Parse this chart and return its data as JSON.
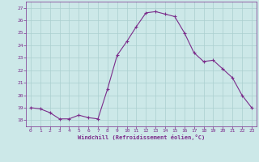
{
  "x": [
    0,
    1,
    2,
    3,
    4,
    5,
    6,
    7,
    8,
    9,
    10,
    11,
    12,
    13,
    14,
    15,
    16,
    17,
    18,
    19,
    20,
    21,
    22,
    23
  ],
  "y": [
    19.0,
    18.9,
    18.6,
    18.1,
    18.1,
    18.4,
    18.2,
    18.1,
    20.5,
    23.2,
    24.3,
    25.5,
    26.6,
    26.7,
    26.5,
    26.3,
    25.0,
    23.4,
    22.7,
    22.8,
    22.1,
    21.4,
    20.0,
    19.0
  ],
  "line_color": "#7b2d8b",
  "marker": "+",
  "marker_size": 3.0,
  "bg_color": "#cce8e8",
  "grid_color": "#aacfcf",
  "xlabel": "Windchill (Refroidissement éolien,°C)",
  "xlabel_color": "#7b2d8b",
  "tick_color": "#7b2d8b",
  "ylim": [
    17.5,
    27.5
  ],
  "xlim": [
    -0.5,
    23.5
  ],
  "yticks": [
    18,
    19,
    20,
    21,
    22,
    23,
    24,
    25,
    26,
    27
  ],
  "xticks": [
    0,
    1,
    2,
    3,
    4,
    5,
    6,
    7,
    8,
    9,
    10,
    11,
    12,
    13,
    14,
    15,
    16,
    17,
    18,
    19,
    20,
    21,
    22,
    23
  ],
  "spine_color": "#7b2d8b"
}
